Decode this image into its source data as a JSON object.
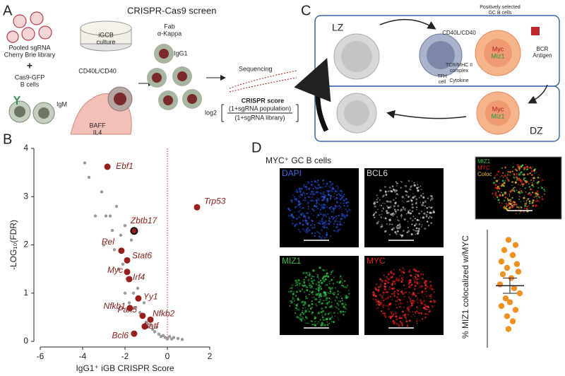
{
  "figure": {
    "panel_labels": [
      "A",
      "B",
      "C",
      "D"
    ],
    "a": {
      "title": "CRISPR-Cas9 screen",
      "culture": [
        "iGCB",
        "culture"
      ],
      "library": [
        "Pooled sgRNA",
        "Cherry Brie library"
      ],
      "plus": "+",
      "cells": [
        "Cas9-GFP",
        "B cells"
      ],
      "igm": "IgM",
      "cd40": "CD40L/CD40",
      "cytokines": [
        "BAFF",
        "IL4"
      ],
      "fab": [
        "Fab",
        "α-Kappa"
      ],
      "igg1": "IgG1",
      "sequencing": "Sequencing",
      "score": "CRISPR score",
      "log2": "log2",
      "numerator": "(1+sgRNA population)",
      "denominator": "(1+sgRNA library)"
    },
    "c": {
      "lz": "LZ",
      "dz": "DZ",
      "selected": [
        "Positively selected",
        "GC B cells"
      ],
      "cd40": "CD40L/CD40",
      "bcr": [
        "BCR",
        "Antigen"
      ],
      "myc_lz": "Myc",
      "miz1_lz": "Miz1",
      "tfh": [
        "TFH",
        "cell"
      ],
      "tcr": [
        "TCR/MHC II",
        "complex"
      ],
      "cytokine": "Cytokine",
      "myc_dz": "Myc",
      "miz1_dz": "Miz1"
    },
    "d": {
      "title": "MYC⁺ GC B cells",
      "dapi": "DAPI",
      "bcl6": "BCL6",
      "miz1": "MIZ1",
      "myc": "MYC",
      "inset": [
        "MIZ1",
        "MYC",
        "Coloc"
      ]
    }
  },
  "chart_data": [
    {
      "type": "scatter",
      "xlabel": "IgG1⁺ iGB CRISPR Score",
      "ylabel": "-LOG₁₀(FDR)",
      "xlim": [
        -6,
        2
      ],
      "ylim": [
        0,
        4
      ],
      "xticks": [
        -6,
        -4,
        -2,
        0,
        2
      ],
      "yticks": [
        0,
        1,
        2,
        3,
        4
      ],
      "reference_x": 0,
      "color": "#9a9a9a",
      "x": [
        -3.9,
        -3.7,
        -3.4,
        -3.1,
        -3.0,
        -2.9,
        -2.7,
        -2.6,
        -2.5,
        -2.4,
        -2.3,
        -2.2,
        -2.1,
        -2.0,
        -2.0,
        -1.9,
        -1.8,
        -1.7,
        -1.6,
        -1.5,
        -1.4,
        -1.3,
        -1.2,
        -1.1,
        -1.0,
        -0.9,
        -0.8,
        -0.7,
        -0.6,
        -0.5,
        -0.4,
        -0.3,
        -0.2,
        -0.1,
        0.0,
        0.1,
        0.2,
        0.3,
        0.5,
        0.7
      ],
      "values": [
        3.7,
        3.4,
        2.6,
        3.1,
        2.0,
        2.6,
        2.6,
        2.3,
        1.9,
        2.8,
        1.5,
        2.2,
        1.6,
        1.0,
        2.4,
        1.3,
        0.8,
        2.1,
        1.0,
        0.7,
        1.1,
        0.6,
        0.5,
        0.8,
        0.4,
        0.3,
        0.35,
        0.25,
        0.2,
        0.3,
        0.15,
        0.1,
        0.12,
        0.08,
        0.05,
        0.1,
        0.05,
        0.08,
        0.06,
        0.04
      ],
      "highlighted": {
        "color": "#9b1c1c",
        "labels": [
          "Ebf1",
          "Trp53",
          "Zbtb17",
          "Rel",
          "Stat6",
          "Myc",
          "Irf4",
          "Yy1",
          "Nfkb1",
          "Pax5",
          "Nfkb2",
          "Batf",
          "Bcl6"
        ],
        "x": [
          -2.83,
          1.4,
          -1.57,
          -2.17,
          -1.9,
          -1.9,
          -1.8,
          -1.37,
          -1.77,
          -1.17,
          -0.8,
          -1.07,
          -1.57
        ],
        "values": [
          3.62,
          2.78,
          2.29,
          1.88,
          1.68,
          1.44,
          1.29,
          0.89,
          0.69,
          0.53,
          0.45,
          0.31,
          0.16
        ],
        "ringed": [
          false,
          false,
          true,
          false,
          false,
          false,
          false,
          false,
          false,
          false,
          false,
          false,
          false
        ]
      }
    },
    {
      "type": "dot",
      "ylabel": "% MIZ1 colocalized w/MYC",
      "ylim": [
        0,
        90
      ],
      "color": "#f0901e",
      "values": [
        82,
        78,
        74,
        70,
        65,
        63,
        60,
        57,
        55,
        52,
        47,
        44,
        40,
        36,
        33,
        30,
        27,
        22,
        18,
        12
      ],
      "mean": 46,
      "sem": 6
    }
  ]
}
